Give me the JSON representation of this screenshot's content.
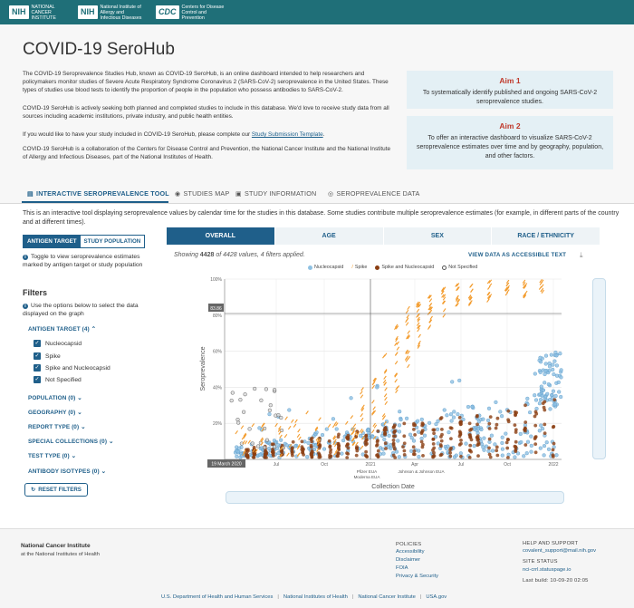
{
  "header": {
    "nci": {
      "abbr": "NIH",
      "name": "NATIONAL CANCER INSTITUTE"
    },
    "niaid": {
      "abbr": "NIH",
      "name": "National Institute of Allergy and Infectious Diseases"
    },
    "cdc": {
      "abbr": "CDC",
      "name": "Centers for Disease Control and Prevention"
    }
  },
  "page": {
    "title": "COVID-19 SeroHub",
    "intro1": "The COVID-19 Seroprevalence Studies Hub, known as COVID-19 SeroHub, is an online dashboard intended to help researchers and policymakers monitor studies of Severe Acute Respiratory Syndrome Coronavirus 2 (SARS-CoV-2) seroprevalence in the United States. These types of studies use blood tests to identify the proportion of people in the population who possess antibodies to SARS-CoV-2.",
    "intro2": "COVID-19 SeroHub is actively seeking both planned and completed studies to include in this database. We'd love to receive study data from all sources including academic institutions, private industry, and public health entities.",
    "intro3_pre": "If you would like to have your study included in COVID-19 SeroHub, please complete our ",
    "intro3_link": "Study Submission Template",
    "intro3_post": ".",
    "intro4": "COVID-19 SeroHub is a collaboration of the Centers for Disease Control and Prevention, the National Cancer Institute and the National Institute of Allergy and Infectious Diseases, part of the National Institutes of Health."
  },
  "aims": [
    {
      "title": "Aim 1",
      "text": "To systematically identify published and ongoing SARS-CoV-2 seroprevalence studies."
    },
    {
      "title": "Aim 2",
      "text": "To offer an interactive dashboard to visualize SARS-CoV-2 seroprevalence estimates over time and by geography, population, and other factors."
    }
  ],
  "tabs": [
    "INTERACTIVE SEROPREVALENCE TOOL",
    "STUDIES MAP",
    "STUDY INFORMATION",
    "SEROPREVALENCE DATA"
  ],
  "tool_description": "This is an interactive tool displaying seroprevalence values by calendar time for the studies in this database. Some studies contribute multiple seroprevalence estimates (for example, in different parts of the country and at different times).",
  "left": {
    "toggle": [
      "ANTIGEN TARGET",
      "STUDY POPULATION"
    ],
    "toggle_help": "Toggle to view seroprevalence estimates marked by antigen target or study population",
    "filters_title": "Filters",
    "filters_help": "Use the options below to select the data displayed on the graph",
    "antigen_group": "ANTIGEN TARGET (4)",
    "antigen_options": [
      "Nucleocapsid",
      "Spike",
      "Spike and Nucleocapsid",
      "Not Specified"
    ],
    "groups": [
      "POPULATION (0)",
      "GEOGRAPHY (0)",
      "REPORT TYPE (0)",
      "SPECIAL COLLECTIONS (0)",
      "TEST TYPE (0)",
      "ANTIBODY ISOTYPES (0)"
    ],
    "reset": "RESET FILTERS"
  },
  "graph": {
    "tabs": [
      "OVERALL",
      "AGE",
      "SEX",
      "RACE / ETHNICITY"
    ],
    "showing_pre": "Showing ",
    "showing_count": "4428",
    "showing_post": " of 4428 values, 4 filters applied.",
    "accessible": "VIEW DATA AS ACCESSIBLE TEXT",
    "download_icon": "download-icon"
  },
  "chart_data": {
    "type": "scatter",
    "xlabel": "Collection Date",
    "ylabel": "Seroprevalence",
    "ylim": [
      0,
      100
    ],
    "y_ticks": [
      "20%",
      "40%",
      "60%",
      "80%",
      "100%"
    ],
    "x_ticks": [
      "Jul",
      "Oct",
      "2021",
      "Apr",
      "Jul",
      "Oct",
      "2022"
    ],
    "start_label": "19 March 2020",
    "hover_value": "83.86",
    "annotations": [
      "Pfizer EUA",
      "Moderna EUA",
      "Johnson & Johnson EUA"
    ],
    "legend": [
      "Nucleocapsid",
      "Spike",
      "Spike and Nucleocapsid",
      "Not Specified"
    ],
    "colors": {
      "Nucleocapsid": "#8fc1e3",
      "Spike": "#f39c2e",
      "Spike and Nucleocapsid": "#8b3f13",
      "Not Specified": "#999999"
    }
  },
  "footer": {
    "org": "National Cancer Institute",
    "org_sub": "at the National Institutes of Health",
    "policies_h": "POLICIES",
    "policies": [
      "Accessibility",
      "Disclaimer",
      "FOIA",
      "Privacy & Security"
    ],
    "help_h": "HELP AND SUPPORT",
    "help_email": "covalent_support@mail.nih.gov",
    "status_h": "SITE STATUS",
    "status_link": "nci-crrl.statuspage.io",
    "build": "Last build: 10-09-20 02:05",
    "bottom_links": [
      "U.S. Department of Health and Human Services",
      "National Institutes of Health",
      "National Cancer Institute",
      "USA.gov"
    ]
  }
}
